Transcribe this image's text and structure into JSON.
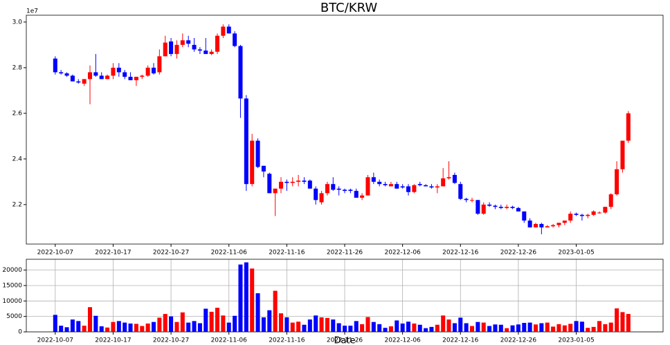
{
  "chart_data": [
    {
      "type": "candlestick",
      "title": "BTC/KRW",
      "offset_label": "1e7",
      "up_color": "#ff0000",
      "down_color": "#0000ff",
      "x": [
        "2022-10-07",
        "2022-10-08",
        "2022-10-09",
        "2022-10-10",
        "2022-10-11",
        "2022-10-12",
        "2022-10-13",
        "2022-10-14",
        "2022-10-15",
        "2022-10-16",
        "2022-10-17",
        "2022-10-18",
        "2022-10-19",
        "2022-10-20",
        "2022-10-21",
        "2022-10-22",
        "2022-10-23",
        "2022-10-24",
        "2022-10-25",
        "2022-10-26",
        "2022-10-27",
        "2022-10-28",
        "2022-10-29",
        "2022-10-30",
        "2022-10-31",
        "2022-11-01",
        "2022-11-02",
        "2022-11-03",
        "2022-11-04",
        "2022-11-05",
        "2022-11-06",
        "2022-11-07",
        "2022-11-08",
        "2022-11-09",
        "2022-11-10",
        "2022-11-11",
        "2022-11-12",
        "2022-11-13",
        "2022-11-14",
        "2022-11-15",
        "2022-11-16",
        "2022-11-17",
        "2022-11-18",
        "2022-11-19",
        "2022-11-20",
        "2022-11-21",
        "2022-11-22",
        "2022-11-23",
        "2022-11-24",
        "2022-11-25",
        "2022-11-26",
        "2022-11-27",
        "2022-11-28",
        "2022-11-29",
        "2022-11-30",
        "2022-12-01",
        "2022-12-02",
        "2022-12-03",
        "2022-12-04",
        "2022-12-05",
        "2022-12-06",
        "2022-12-07",
        "2022-12-08",
        "2022-12-09",
        "2022-12-10",
        "2022-12-11",
        "2022-12-12",
        "2022-12-13",
        "2022-12-14",
        "2022-12-15",
        "2022-12-16",
        "2022-12-17",
        "2022-12-18",
        "2022-12-19",
        "2022-12-20",
        "2022-12-21",
        "2022-12-22",
        "2022-12-23",
        "2022-12-24",
        "2022-12-25",
        "2022-12-26",
        "2022-12-27",
        "2022-12-28",
        "2022-12-29",
        "2022-12-30",
        "2022-12-31",
        "2023-01-01",
        "2023-01-02",
        "2023-01-03",
        "2023-01-04",
        "2023-01-05",
        "2023-01-06",
        "2023-01-07",
        "2023-01-08",
        "2023-01-09",
        "2023-01-10",
        "2023-01-11",
        "2023-01-12",
        "2023-01-13",
        "2023-01-14"
      ],
      "open": [
        2.84,
        2.78,
        2.775,
        2.765,
        2.74,
        2.73,
        2.75,
        2.78,
        2.765,
        2.75,
        2.765,
        2.8,
        2.78,
        2.76,
        2.745,
        2.76,
        2.765,
        2.8,
        2.78,
        2.85,
        2.915,
        2.86,
        2.9,
        2.92,
        2.9,
        2.88,
        2.875,
        2.86,
        2.87,
        2.94,
        2.98,
        2.95,
        2.895,
        2.665,
        2.29,
        2.48,
        2.37,
        2.335,
        2.25,
        2.27,
        2.3,
        2.295,
        2.3,
        2.305,
        2.305,
        2.27,
        2.21,
        2.25,
        2.29,
        2.27,
        2.265,
        2.265,
        2.26,
        2.23,
        2.24,
        2.32,
        2.3,
        2.29,
        2.28,
        2.29,
        2.28,
        2.28,
        2.255,
        2.29,
        2.285,
        2.28,
        2.275,
        2.28,
        2.315,
        2.33,
        2.29,
        2.225,
        2.22,
        2.22,
        2.16,
        2.2,
        2.195,
        2.19,
        2.185,
        2.19,
        2.185,
        2.17,
        2.13,
        2.1,
        2.115,
        2.1,
        2.105,
        2.11,
        2.12,
        2.13,
        2.16,
        2.155,
        2.15,
        2.155,
        2.165,
        2.165,
        2.19,
        2.245,
        2.355,
        2.48
      ],
      "high": [
        2.85,
        2.79,
        2.78,
        2.77,
        2.75,
        2.75,
        2.81,
        2.86,
        2.78,
        2.77,
        2.82,
        2.82,
        2.79,
        2.78,
        2.76,
        2.77,
        2.81,
        2.82,
        2.88,
        2.94,
        2.93,
        2.92,
        2.95,
        2.94,
        2.93,
        2.89,
        2.93,
        2.88,
        2.95,
        2.99,
        2.99,
        2.96,
        2.9,
        2.68,
        2.51,
        2.49,
        2.37,
        2.34,
        2.27,
        2.32,
        2.31,
        2.32,
        2.33,
        2.32,
        2.31,
        2.28,
        2.26,
        2.3,
        2.32,
        2.28,
        2.27,
        2.27,
        2.27,
        2.25,
        2.33,
        2.34,
        2.31,
        2.3,
        2.3,
        2.3,
        2.29,
        2.29,
        2.29,
        2.3,
        2.29,
        2.29,
        2.29,
        2.36,
        2.39,
        2.34,
        2.3,
        2.23,
        2.23,
        2.22,
        2.21,
        2.21,
        2.2,
        2.2,
        2.2,
        2.195,
        2.19,
        2.17,
        2.14,
        2.12,
        2.12,
        2.11,
        2.115,
        2.12,
        2.13,
        2.17,
        2.165,
        2.16,
        2.16,
        2.175,
        2.17,
        2.19,
        2.25,
        2.39,
        2.48,
        2.61
      ],
      "low": [
        2.77,
        2.77,
        2.76,
        2.74,
        2.73,
        2.72,
        2.64,
        2.76,
        2.75,
        2.75,
        2.75,
        2.76,
        2.75,
        2.75,
        2.72,
        2.75,
        2.76,
        2.77,
        2.77,
        2.85,
        2.85,
        2.84,
        2.89,
        2.89,
        2.87,
        2.86,
        2.86,
        2.855,
        2.86,
        2.93,
        2.95,
        2.89,
        2.58,
        2.26,
        2.28,
        2.36,
        2.32,
        2.25,
        2.15,
        2.25,
        2.26,
        2.28,
        2.28,
        2.29,
        2.27,
        2.2,
        2.2,
        2.24,
        2.26,
        2.24,
        2.25,
        2.25,
        2.23,
        2.22,
        2.24,
        2.29,
        2.28,
        2.28,
        2.28,
        2.27,
        2.27,
        2.24,
        2.25,
        2.28,
        2.28,
        2.27,
        2.25,
        2.28,
        2.31,
        2.29,
        2.22,
        2.21,
        2.21,
        2.155,
        2.155,
        2.19,
        2.18,
        2.18,
        2.18,
        2.18,
        2.17,
        2.12,
        2.1,
        2.1,
        2.07,
        2.1,
        2.1,
        2.1,
        2.11,
        2.12,
        2.15,
        2.13,
        2.14,
        2.15,
        2.16,
        2.16,
        2.18,
        2.24,
        2.34,
        2.47
      ],
      "close": [
        2.78,
        2.775,
        2.765,
        2.74,
        2.735,
        2.75,
        2.78,
        2.765,
        2.75,
        2.765,
        2.8,
        2.78,
        2.76,
        2.745,
        2.76,
        2.765,
        2.8,
        2.775,
        2.85,
        2.91,
        2.86,
        2.9,
        2.92,
        2.905,
        2.88,
        2.875,
        2.86,
        2.87,
        2.94,
        2.98,
        2.95,
        2.895,
        2.665,
        2.29,
        2.48,
        2.365,
        2.345,
        2.25,
        2.27,
        2.3,
        2.295,
        2.3,
        2.305,
        2.3,
        2.27,
        2.22,
        2.25,
        2.29,
        2.265,
        2.265,
        2.26,
        2.26,
        2.23,
        2.24,
        2.32,
        2.3,
        2.29,
        2.285,
        2.29,
        2.27,
        2.275,
        2.255,
        2.285,
        2.285,
        2.28,
        2.275,
        2.28,
        2.315,
        2.32,
        2.295,
        2.225,
        2.22,
        2.22,
        2.16,
        2.2,
        2.195,
        2.19,
        2.185,
        2.19,
        2.185,
        2.17,
        2.13,
        2.1,
        2.115,
        2.1,
        2.105,
        2.11,
        2.12,
        2.13,
        2.16,
        2.155,
        2.15,
        2.155,
        2.17,
        2.165,
        2.19,
        2.245,
        2.355,
        2.48,
        2.6
      ],
      "xlim": [
        "2022-10-02",
        "2023-01-20"
      ],
      "xticks": [
        "2022-10-07",
        "2022-10-17",
        "2022-10-27",
        "2022-11-06",
        "2022-11-16",
        "2022-11-26",
        "2022-12-06",
        "2022-12-16",
        "2022-12-26",
        "2023-01-05"
      ],
      "ylim": [
        2.027,
        3.03
      ],
      "yticks": [
        2.2,
        2.4,
        2.6,
        2.8,
        {
          "value": 3,
          "label": "3.0"
        }
      ],
      "grid": false
    },
    {
      "type": "bar",
      "x_label": "Date",
      "values": [
        5500,
        2000,
        1500,
        4000,
        3500,
        2000,
        8000,
        5200,
        1800,
        1400,
        3200,
        3500,
        3000,
        2700,
        2600,
        1900,
        2700,
        3200,
        4600,
        5800,
        5000,
        3200,
        6300,
        3000,
        3500,
        2800,
        7500,
        6500,
        7800,
        5300,
        3000,
        5200,
        21800,
        22500,
        20500,
        12500,
        4700,
        7000,
        13300,
        6000,
        4700,
        3000,
        3300,
        2300,
        4000,
        5300,
        4700,
        4500,
        4000,
        2800,
        2000,
        2000,
        3500,
        2500,
        4800,
        3200,
        2500,
        1300,
        1800,
        3700,
        2700,
        3300,
        2700,
        2300,
        1200,
        1600,
        2300,
        5300,
        4000,
        2800,
        4600,
        2800,
        1900,
        3200,
        3000,
        1900,
        2400,
        2300,
        1200,
        2100,
        2400,
        2900,
        3000,
        2400,
        2800,
        3000,
        1700,
        2500,
        2100,
        2600,
        3500,
        3300,
        1300,
        1600,
        3500,
        2500,
        3000,
        7600,
        6400,
        5800
      ],
      "xticks": [
        "2022-10-07",
        "2022-10-17",
        "2022-10-27",
        "2022-11-06",
        "2022-11-16",
        "2022-11-26",
        "2022-12-06",
        "2022-12-16",
        "2022-12-26",
        "2023-01-05"
      ],
      "ylim": [
        0,
        23500
      ],
      "yticks": [
        0,
        5000,
        10000,
        15000,
        20000
      ],
      "grid": true
    }
  ]
}
